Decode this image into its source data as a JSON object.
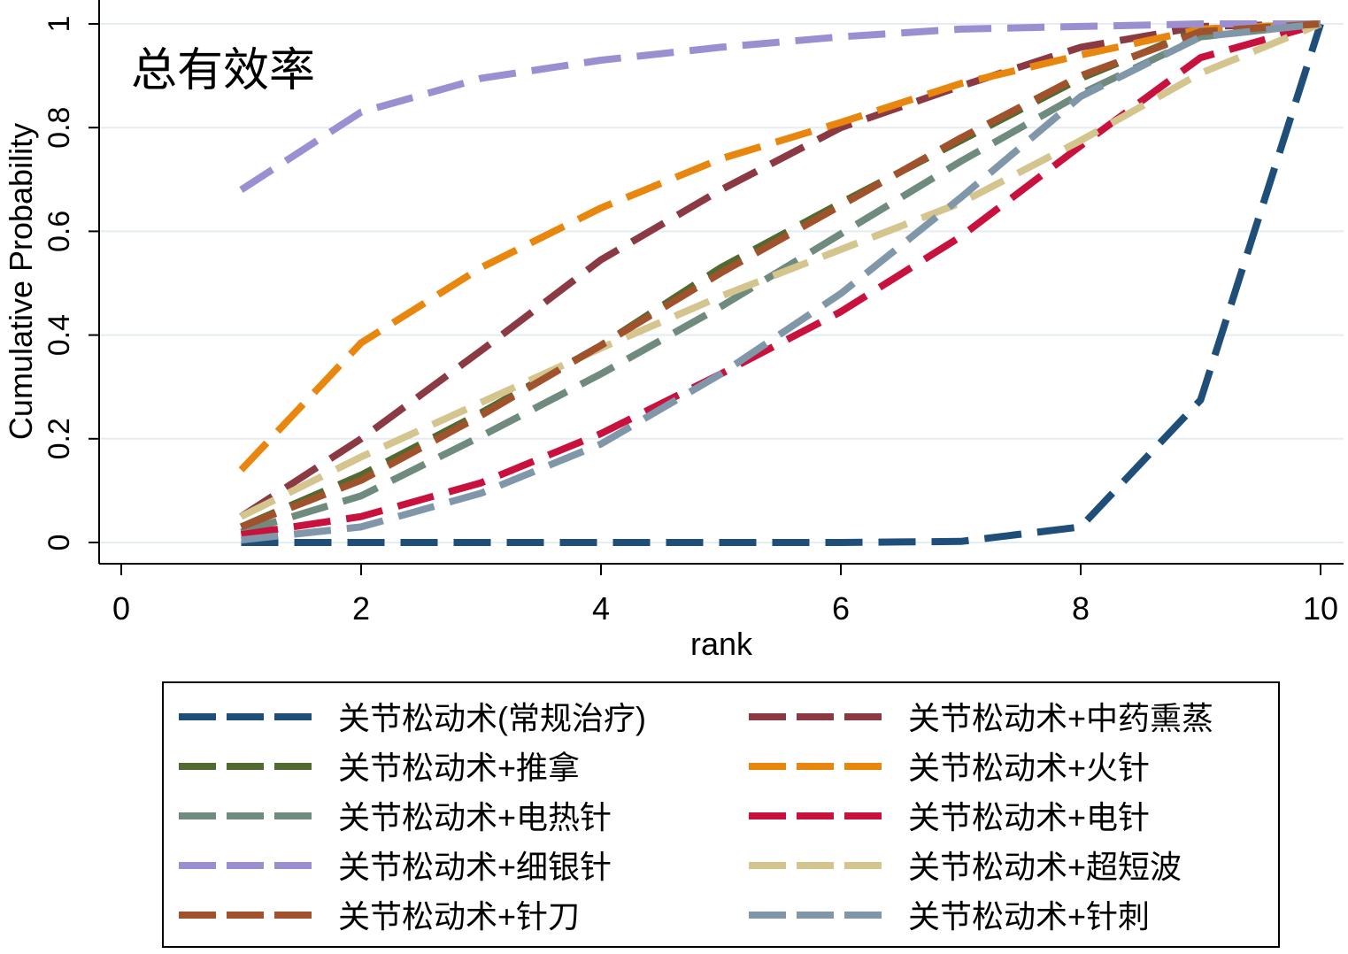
{
  "chart_data": {
    "type": "line",
    "title": "总有效率",
    "xlabel": "rank",
    "ylabel": "Cumulative Probability",
    "xlim": [
      0,
      10
    ],
    "ylim": [
      0,
      1
    ],
    "xticks": [
      "0",
      "2",
      "4",
      "6",
      "8",
      "10"
    ],
    "yticks": [
      "0",
      "0.2",
      "0.4",
      "0.6",
      "0.8",
      "1"
    ],
    "grid": true,
    "legend_position": "bottom",
    "x": [
      1,
      2,
      3,
      4,
      5,
      6,
      7,
      8,
      9,
      10
    ],
    "series": [
      {
        "name": "关节松动术(常规治疗)",
        "color": "#1f4e79",
        "values": [
          0,
          0,
          0,
          0,
          0,
          0,
          0.002,
          0.03,
          0.275,
          1
        ]
      },
      {
        "name": "关节松动术+中药熏蒸",
        "color": "#8b3a44",
        "values": [
          0.05,
          0.2,
          0.37,
          0.545,
          0.68,
          0.8,
          0.88,
          0.955,
          0.995,
          1
        ]
      },
      {
        "name": "关节松动术+推拿",
        "color": "#4f6b2f",
        "values": [
          0.03,
          0.13,
          0.25,
          0.38,
          0.53,
          0.655,
          0.775,
          0.895,
          0.99,
          1
        ]
      },
      {
        "name": "关节松动术+火针",
        "color": "#e8860e",
        "values": [
          0.14,
          0.385,
          0.53,
          0.645,
          0.74,
          0.81,
          0.885,
          0.94,
          0.99,
          1
        ]
      },
      {
        "name": "关节松动术+电热针",
        "color": "#6e8b7e",
        "values": [
          0.02,
          0.09,
          0.205,
          0.325,
          0.455,
          0.595,
          0.735,
          0.865,
          0.975,
          1
        ]
      },
      {
        "name": "关节松动术+电针",
        "color": "#c8113c",
        "values": [
          0.015,
          0.05,
          0.115,
          0.21,
          0.325,
          0.445,
          0.59,
          0.765,
          0.935,
          1
        ]
      },
      {
        "name": "关节松动术+细银针",
        "color": "#9b8fd2",
        "values": [
          0.68,
          0.83,
          0.895,
          0.93,
          0.955,
          0.975,
          0.99,
          0.995,
          1,
          1
        ]
      },
      {
        "name": "关节松动术+超短波",
        "color": "#d4c48e",
        "values": [
          0.05,
          0.165,
          0.27,
          0.375,
          0.475,
          0.565,
          0.655,
          0.775,
          0.905,
          1
        ]
      },
      {
        "name": "关节松动术+针刀",
        "color": "#a0522d",
        "values": [
          0.03,
          0.12,
          0.245,
          0.38,
          0.52,
          0.65,
          0.78,
          0.9,
          0.985,
          1
        ]
      },
      {
        "name": "关节松动术+针刺",
        "color": "#8097aa",
        "values": [
          0.005,
          0.03,
          0.095,
          0.19,
          0.325,
          0.48,
          0.665,
          0.86,
          0.975,
          1
        ]
      }
    ]
  }
}
